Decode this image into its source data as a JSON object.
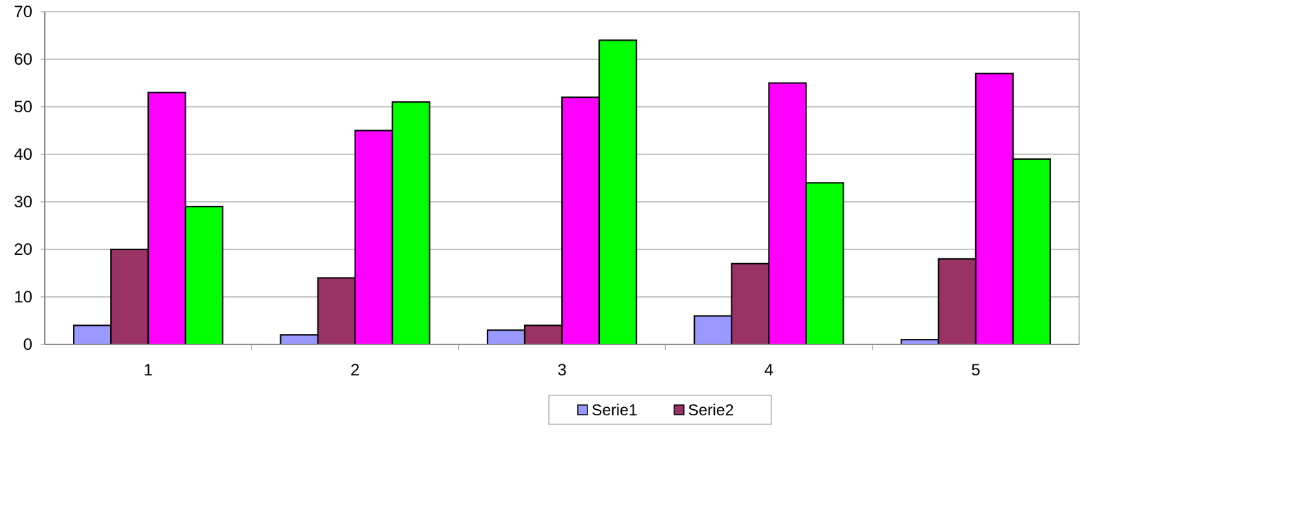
{
  "chart_data": {
    "type": "bar",
    "categories": [
      "1",
      "2",
      "3",
      "4",
      "5"
    ],
    "series": [
      {
        "name": "Serie1",
        "values": [
          4,
          2,
          3,
          6,
          1
        ],
        "color": "#9999FF"
      },
      {
        "name": "Serie2",
        "values": [
          20,
          14,
          4,
          17,
          18
        ],
        "color": "#993366"
      },
      {
        "values": [
          53,
          45,
          52,
          55,
          57
        ],
        "color": "#FF00FF"
      },
      {
        "values": [
          29,
          51,
          64,
          34,
          39
        ],
        "color": "#00FF00"
      }
    ],
    "ylim": [
      0,
      70
    ],
    "yticks": [
      "0",
      "10",
      "20",
      "30",
      "40",
      "50",
      "60",
      "70"
    ],
    "grid": true,
    "legend": "bottom-center",
    "title": "",
    "xlabel": "",
    "ylabel": ""
  }
}
